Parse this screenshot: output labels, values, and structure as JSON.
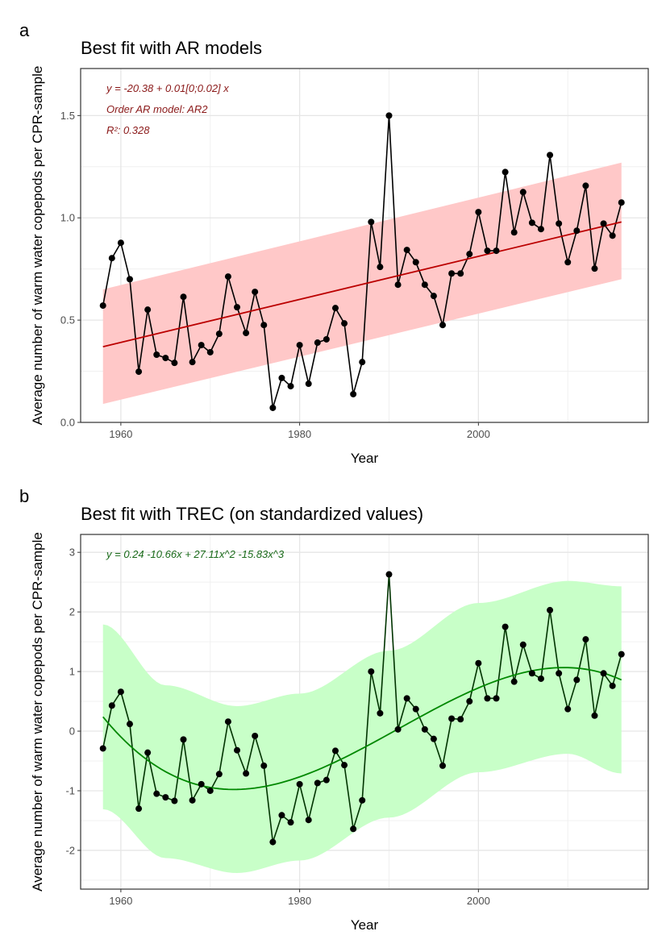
{
  "chart_data": [
    {
      "panel_label": "a",
      "type": "line",
      "title": "Best fit with AR models",
      "xlabel": "Year",
      "ylabel": "Average number of warm water copepods per CPR-sample",
      "xlim": [
        1955.5,
        2019
      ],
      "ylim": [
        0,
        1.73
      ],
      "xticks": [
        1960,
        1980,
        2000
      ],
      "yticks": [
        0.0,
        0.5,
        1.0,
        1.5
      ],
      "ytick_labels": [
        "0.0",
        "0.5",
        "1.0",
        "1.5"
      ],
      "grid": true,
      "annotations": [
        "y = -20.38 + 0.01[0;0.02] x",
        "Order AR model: AR2",
        "R²: 0.328"
      ],
      "colors": {
        "points": "#000000",
        "fit": "#bb0000",
        "band": "#ffc8c8",
        "annotation": "#8b1a1a"
      },
      "x": [
        1958,
        1959,
        1960,
        1961,
        1962,
        1963,
        1964,
        1965,
        1966,
        1967,
        1968,
        1969,
        1970,
        1971,
        1972,
        1973,
        1974,
        1975,
        1976,
        1977,
        1978,
        1979,
        1980,
        1981,
        1982,
        1983,
        1984,
        1985,
        1986,
        1987,
        1988,
        1989,
        1990,
        1991,
        1992,
        1993,
        1994,
        1995,
        1996,
        1997,
        1998,
        1999,
        2000,
        2001,
        2002,
        2003,
        2004,
        2005,
        2006,
        2007,
        2008,
        2009,
        2010,
        2011,
        2012,
        2013,
        2014,
        2015,
        2016
      ],
      "y": [
        0.571,
        0.803,
        0.878,
        0.7,
        0.248,
        0.551,
        0.331,
        0.315,
        0.291,
        0.614,
        0.295,
        0.378,
        0.343,
        0.433,
        0.713,
        0.563,
        0.437,
        0.638,
        0.476,
        0.071,
        0.217,
        0.177,
        0.378,
        0.189,
        0.39,
        0.406,
        0.559,
        0.484,
        0.138,
        0.295,
        0.98,
        0.76,
        1.5,
        0.673,
        0.843,
        0.783,
        0.673,
        0.618,
        0.476,
        0.728,
        0.728,
        0.823,
        1.028,
        0.839,
        0.839,
        1.224,
        0.929,
        1.126,
        0.976,
        0.945,
        1.307,
        0.972,
        0.783,
        0.937,
        1.157,
        0.752,
        0.972,
        0.913,
        1.075
      ],
      "fit": {
        "x": [
          1958,
          2016
        ],
        "y": [
          0.37,
          0.98
        ],
        "lower": [
          0.09,
          0.7
        ],
        "upper": [
          0.65,
          1.27
        ]
      }
    },
    {
      "panel_label": "b",
      "type": "line",
      "title": "Best fit with TREC (on standardized values)",
      "xlabel": "Year",
      "ylabel": "Average number of warm water copepods per CPR-sample",
      "xlim": [
        1955.5,
        2019
      ],
      "ylim": [
        -2.65,
        3.3
      ],
      "xticks": [
        1960,
        1980,
        2000
      ],
      "yticks": [
        -2,
        -1,
        0,
        1,
        2,
        3
      ],
      "ytick_labels": [
        "-2",
        "-1",
        "0",
        "1",
        "2",
        "3"
      ],
      "grid": true,
      "annotations": [
        "y =  0.24   -10.66x  + 27.11x^2   -15.83x^3"
      ],
      "colors": {
        "points": "#000000",
        "line": "#003300",
        "fit": "#008800",
        "band": "#c8ffc8",
        "annotation": "#1a6b1a"
      },
      "x": [
        1958,
        1959,
        1960,
        1961,
        1962,
        1963,
        1964,
        1965,
        1966,
        1967,
        1968,
        1969,
        1970,
        1971,
        1972,
        1973,
        1974,
        1975,
        1976,
        1977,
        1978,
        1979,
        1980,
        1981,
        1982,
        1983,
        1984,
        1985,
        1986,
        1987,
        1988,
        1989,
        1990,
        1991,
        1992,
        1993,
        1994,
        1995,
        1996,
        1997,
        1998,
        1999,
        2000,
        2001,
        2002,
        2003,
        2004,
        2005,
        2006,
        2007,
        2008,
        2009,
        2010,
        2011,
        2012,
        2013,
        2014,
        2015,
        2016
      ],
      "y": [
        -0.29,
        0.43,
        0.66,
        0.12,
        -1.3,
        -0.36,
        -1.05,
        -1.11,
        -1.17,
        -0.14,
        -1.16,
        -0.89,
        -1.0,
        -0.72,
        0.16,
        -0.32,
        -0.71,
        -0.08,
        -0.58,
        -1.86,
        -1.41,
        -1.53,
        -0.89,
        -1.49,
        -0.87,
        -0.82,
        -0.33,
        -0.57,
        -1.64,
        -1.16,
        1.0,
        0.3,
        2.63,
        0.03,
        0.55,
        0.37,
        0.03,
        -0.13,
        -0.58,
        0.21,
        0.2,
        0.5,
        1.14,
        0.55,
        0.55,
        1.75,
        0.83,
        1.45,
        0.97,
        0.88,
        2.03,
        0.97,
        0.37,
        0.86,
        1.54,
        0.26,
        0.97,
        0.76,
        1.29
      ],
      "fit": {
        "coefficients": [
          0.24,
          -10.66,
          27.11,
          -15.83
        ],
        "band_x": [
          1958,
          1965,
          1973,
          1980,
          1990,
          2000,
          2010,
          2016
        ],
        "lower": [
          -1.31,
          -2.13,
          -2.38,
          -2.17,
          -1.45,
          -0.69,
          -0.38,
          -0.71
        ],
        "upper": [
          1.79,
          0.77,
          0.42,
          0.63,
          1.35,
          2.15,
          2.52,
          2.43
        ]
      }
    }
  ]
}
